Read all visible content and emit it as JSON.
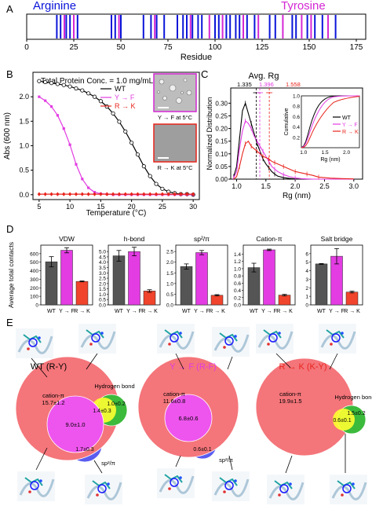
{
  "panel_letters": [
    "A",
    "B",
    "C",
    "D",
    "E"
  ],
  "colors": {
    "arginine": "#0a14d8",
    "tyrosine": "#d428d4",
    "wt": "#000000",
    "yf": "#e23ce2",
    "rk": "#e8241c",
    "bar_wt": "#555555",
    "bar_yf": "#e23ce2",
    "bar_rk": "#f0442c",
    "cation_pi": "#f4757a",
    "sp2pi": "#5a5cf0",
    "hbond_overlap": "#ffff30",
    "hbond": "#3cba3c",
    "overlap_center": "#ee55ee"
  },
  "chart_data": [
    {
      "panel": "A",
      "type": "strip",
      "legend": [
        "Arginine",
        "Tyrosine"
      ],
      "xlabel": "Residue",
      "xlim": [
        0,
        180
      ],
      "xticks": [
        "0",
        "25",
        "50",
        "75",
        "100",
        "125",
        "150",
        "175"
      ],
      "arginine_positions": [
        16,
        18,
        21,
        23,
        27,
        45,
        47,
        50,
        62,
        66,
        69,
        73,
        80,
        83,
        85,
        88,
        91,
        93,
        100,
        102,
        106,
        108,
        111,
        113,
        117,
        121,
        129,
        132,
        141,
        143,
        149,
        153,
        157,
        164
      ],
      "tyrosine_positions": [
        20,
        25,
        49,
        68,
        87,
        97,
        104,
        115,
        123,
        136,
        146,
        151,
        160
      ]
    },
    {
      "panel": "B",
      "type": "line",
      "annotation": "Total Protein Conc. = 1.0 mg/mL",
      "xlabel": "Temperature (°C)",
      "ylabel": "Abs (600 nm)",
      "xlim": [
        4,
        31
      ],
      "ylim": [
        -0.1,
        2.5
      ],
      "xticks": [
        "5",
        "10",
        "15",
        "20",
        "25",
        "30"
      ],
      "yticks": [
        "0.0",
        "0.5",
        "1.0",
        "1.5",
        "2.0"
      ],
      "x": [
        5,
        6,
        7,
        8,
        9,
        10,
        11,
        12,
        13,
        14,
        15,
        16,
        17,
        18,
        19,
        20,
        21,
        22,
        23,
        24,
        25,
        26,
        27,
        28,
        29,
        30
      ],
      "series": [
        {
          "name": "WT",
          "values": [
            2.32,
            2.3,
            2.28,
            2.26,
            2.24,
            2.21,
            2.17,
            2.13,
            2.07,
            2.0,
            1.91,
            1.8,
            1.66,
            1.49,
            1.29,
            1.06,
            0.82,
            0.58,
            0.38,
            0.22,
            0.12,
            0.06,
            0.03,
            0.01,
            0.01,
            0.0
          ]
        },
        {
          "name": "Y → F",
          "values": [
            2.0,
            1.92,
            1.8,
            1.62,
            1.35,
            1.02,
            0.62,
            0.32,
            0.14,
            0.05,
            0.02,
            0.01,
            0.0,
            0.0,
            0.0,
            0.0,
            0.0,
            0.0,
            0.0,
            0.0,
            0.0,
            0.0,
            0.0,
            0.0,
            0.0,
            0.0
          ]
        },
        {
          "name": "R → K",
          "values": [
            0.01,
            0.01,
            0.01,
            0.01,
            0.01,
            0.01,
            0.01,
            0.01,
            0.01,
            0.01,
            0.01,
            0.01,
            0.01,
            0.01,
            0.01,
            0.01,
            0.01,
            0.01,
            0.01,
            0.01,
            0.01,
            0.01,
            0.01,
            0.01,
            0.01,
            0.01
          ]
        }
      ],
      "inset_labels": [
        "Y → F at 5°C",
        "R → K at 5°C"
      ]
    },
    {
      "panel": "C",
      "type": "line",
      "title": "Avg. Rg",
      "xlabel": "Rg (nm)",
      "ylabel": "Normalized Distribution",
      "xlim": [
        0.9,
        3.15
      ],
      "ylim": [
        0,
        0.36
      ],
      "xticks": [
        "1.0",
        "1.5",
        "2.0",
        "2.5",
        "3.0"
      ],
      "yticks": [
        "0.00",
        "0.05",
        "0.10",
        "0.15",
        "0.20",
        "0.25",
        "0.30"
      ],
      "avg_labels": [
        "1.335",
        "1.396",
        "1.558"
      ],
      "avg_values": [
        1.335,
        1.396,
        1.558
      ],
      "x": [
        0.95,
        1.0,
        1.05,
        1.1,
        1.15,
        1.2,
        1.25,
        1.3,
        1.35,
        1.4,
        1.45,
        1.5,
        1.55,
        1.6,
        1.65,
        1.7,
        1.8,
        1.9,
        2.0,
        2.1,
        2.2,
        2.3,
        2.4,
        2.6,
        2.8,
        3.0
      ],
      "series": [
        {
          "name": "WT",
          "values": [
            0.01,
            0.05,
            0.16,
            0.27,
            0.3,
            0.26,
            0.22,
            0.18,
            0.14,
            0.11,
            0.08,
            0.06,
            0.045,
            0.03,
            0.02,
            0.012,
            0.006,
            0.003,
            0.001,
            0,
            0,
            0,
            0,
            0,
            0,
            0
          ]
        },
        {
          "name": "Y → F",
          "values": [
            0.005,
            0.03,
            0.12,
            0.19,
            0.23,
            0.22,
            0.2,
            0.17,
            0.15,
            0.13,
            0.11,
            0.09,
            0.07,
            0.05,
            0.04,
            0.03,
            0.018,
            0.01,
            0.005,
            0.002,
            0.001,
            0,
            0,
            0,
            0,
            0
          ]
        },
        {
          "name": "R → K",
          "values": [
            0.0,
            0.01,
            0.05,
            0.1,
            0.14,
            0.15,
            0.13,
            0.12,
            0.11,
            0.1,
            0.09,
            0.085,
            0.08,
            0.07,
            0.065,
            0.06,
            0.05,
            0.04,
            0.03,
            0.025,
            0.02,
            0.015,
            0.008,
            0.004,
            0.002,
            0.001
          ]
        }
      ],
      "inset": {
        "ylabel": "Cumulative",
        "xlabel": "Rg (nm)",
        "xticks": [
          "1.0",
          "1.5",
          "2.0"
        ],
        "yticks": [
          "0.2",
          "0.4",
          "0.6",
          "0.8",
          "1.0"
        ]
      }
    },
    {
      "panel": "D",
      "type": "bar",
      "ylabel": "Average total contacts",
      "categories": [
        "WT",
        "Y → F",
        "R → K"
      ],
      "subplots": [
        {
          "title": "VDW",
          "ylim": [
            0,
            700
          ],
          "yticks": [
            "0",
            "100",
            "200",
            "300",
            "400",
            "500",
            "600"
          ],
          "values": [
            505,
            640,
            275
          ],
          "errors": [
            60,
            30,
            5
          ]
        },
        {
          "title": "h-bond",
          "ylim": [
            0,
            5.6
          ],
          "yticks": [
            "0.0",
            "0.5",
            "1.0",
            "1.5",
            "2.0",
            "2.5",
            "3.0",
            "3.5",
            "4.0",
            "4.5",
            "5.0"
          ],
          "values": [
            4.6,
            5.0,
            1.3
          ],
          "errors": [
            0.5,
            0.4,
            0.12
          ]
        },
        {
          "title": "sp²/π",
          "ylim": [
            0,
            2.8
          ],
          "yticks": [
            "0.0",
            "0.5",
            "1.0",
            "1.5",
            "2.0",
            "2.5"
          ],
          "values": [
            1.8,
            2.45,
            0.45
          ],
          "errors": [
            0.12,
            0.1,
            0.03
          ]
        },
        {
          "title": "Cation-π",
          "ylim": [
            0,
            1.65
          ],
          "yticks": [
            "0.0",
            "0.2",
            "0.4",
            "0.6",
            "0.8",
            "1.0",
            "1.2",
            "1.4"
          ],
          "values": [
            1.03,
            1.52,
            0.27
          ],
          "errors": [
            0.12,
            0.02,
            0.02
          ]
        },
        {
          "title": "Salt bridge",
          "ylim": [
            0,
            7.0
          ],
          "yticks": [
            "0",
            "1",
            "2",
            "3",
            "4",
            "5",
            "6"
          ],
          "values": [
            4.8,
            5.7,
            1.5
          ],
          "errors": [
            0.05,
            0.9,
            0.1
          ]
        }
      ]
    },
    {
      "panel": "E",
      "type": "venn",
      "diagrams": [
        {
          "title": "WT (R-Y)",
          "cation_pi": "cation-π\n15.7±1.2",
          "center": "9.0±1.0",
          "hbond_overlap": "1.4±0.3",
          "hbond": "1.0±0.2",
          "sp2pi": "1.7±0.3",
          "labels": [
            "Hydrogen bond",
            "sp²/π"
          ]
        },
        {
          "title": "Y → F (R-F)",
          "cation_pi": "cation-π\n11.6±0.8",
          "center": "6.8±0.6",
          "sp2pi": "0.6±0.1",
          "labels": [
            "sp²/π"
          ]
        },
        {
          "title": "R → K (K-Y)",
          "cation_pi": "cation-π\n19.9±1.5",
          "hbond_overlap": "0.6±0.1",
          "hbond": "1.5±0.2",
          "labels": [
            "Hydrogen bond"
          ]
        }
      ]
    }
  ]
}
